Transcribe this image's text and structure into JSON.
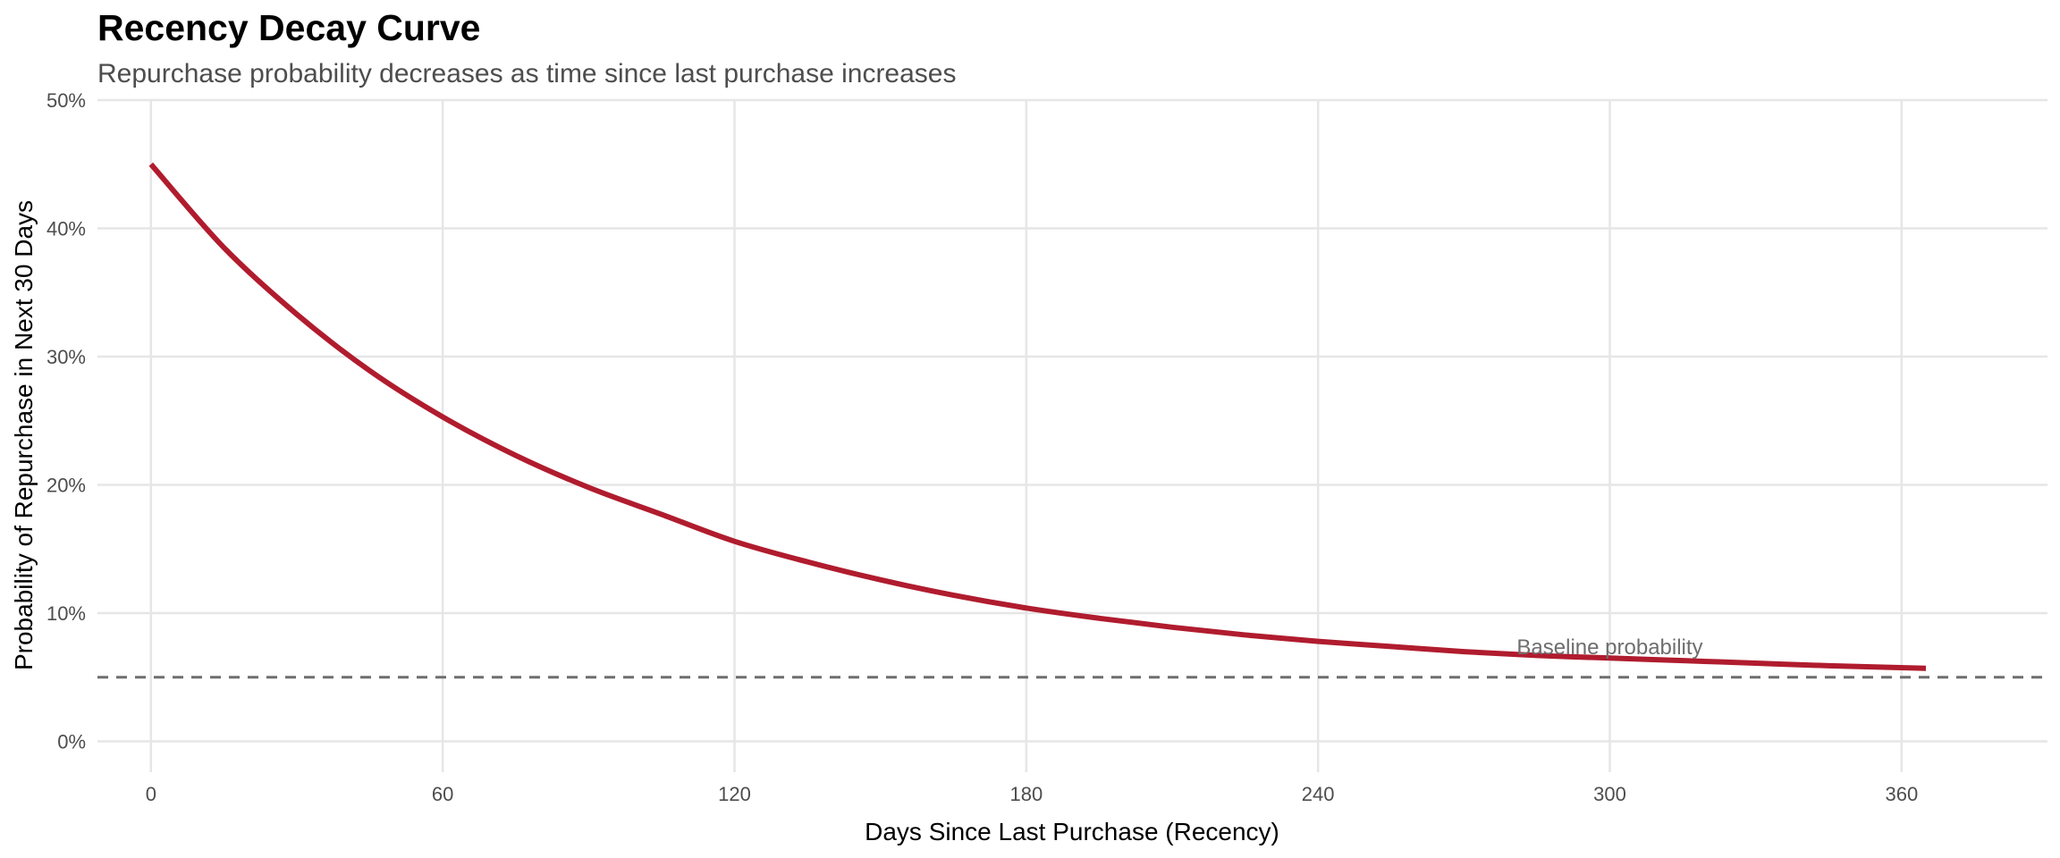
{
  "chart_data": {
    "type": "line",
    "title": "Recency Decay Curve",
    "subtitle": "Repurchase probability decreases as time since last purchase increases",
    "xlabel": "Days Since Last Purchase (Recency)",
    "ylabel": "Probability of Repurchase in Next 30 Days",
    "xlim": [
      -11,
      390
    ],
    "ylim": [
      -0.024,
      0.5
    ],
    "x_ticks": [
      0,
      60,
      120,
      180,
      240,
      300,
      360
    ],
    "x_tick_labels": [
      "0",
      "60",
      "120",
      "180",
      "240",
      "300",
      "360"
    ],
    "y_ticks": [
      0,
      0.1,
      0.2,
      0.3,
      0.4,
      0.5
    ],
    "y_tick_labels": [
      "0%",
      "10%",
      "20%",
      "30%",
      "40%",
      "50%"
    ],
    "grid": true,
    "series": [
      {
        "color": "#b01c2e",
        "x": [
          0,
          15,
          30,
          45,
          60,
          75,
          90,
          105,
          120,
          135,
          150,
          165,
          180,
          195,
          210,
          225,
          240,
          255,
          270,
          285,
          300,
          315,
          330,
          345,
          365
        ],
        "y": [
          0.45,
          0.385,
          0.333,
          0.289,
          0.253,
          0.223,
          0.198,
          0.177,
          0.156,
          0.14,
          0.126,
          0.114,
          0.104,
          0.096,
          0.089,
          0.083,
          0.078,
          0.074,
          0.07,
          0.067,
          0.065,
          0.063,
          0.061,
          0.059,
          0.057
        ]
      }
    ],
    "reference_line": {
      "y": 0.05,
      "style": "dashed",
      "color": "#6e6e6e"
    },
    "annotations": [
      {
        "text": "Baseline probability",
        "x": 300,
        "y": 0.068
      }
    ]
  }
}
